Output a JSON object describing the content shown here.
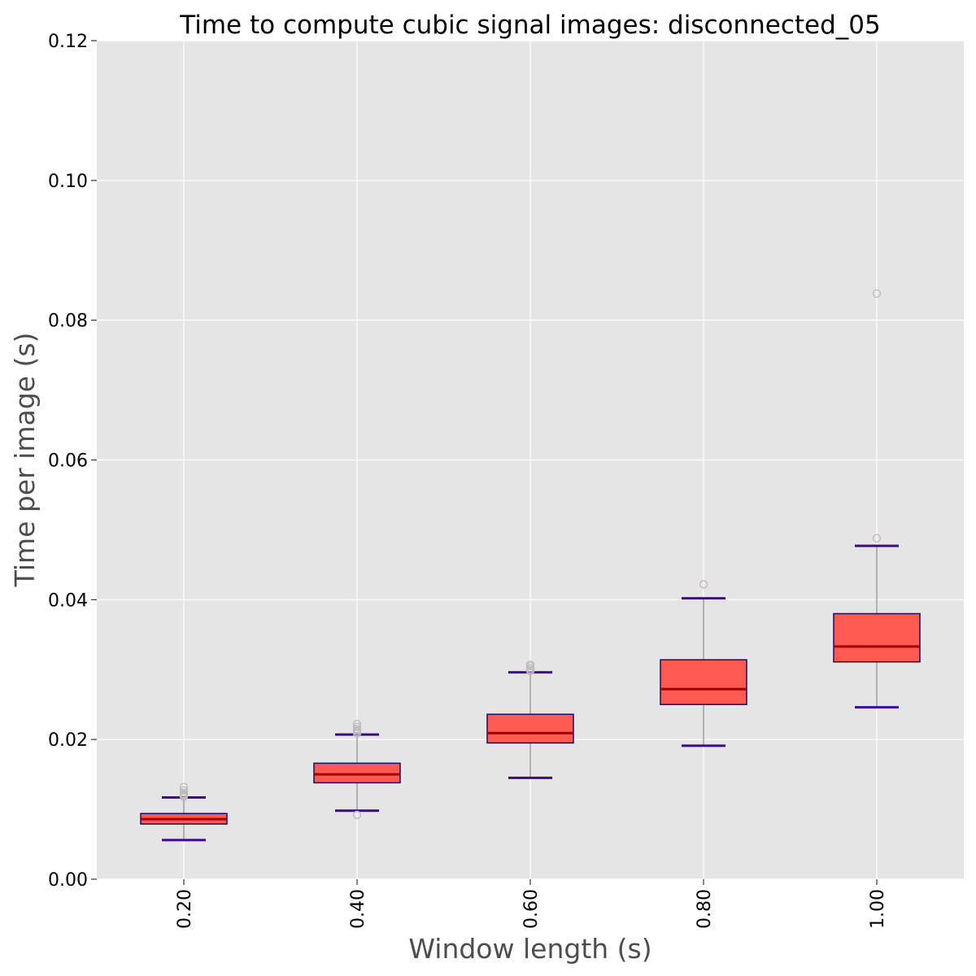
{
  "chart_data": {
    "type": "box",
    "title": "Time to compute cubic signal images: disconnected_05",
    "xlabel": "Window length (s)",
    "ylabel": "Time per image (s)",
    "ylim": [
      0,
      0.12
    ],
    "yticks": [
      "0.00",
      "0.02",
      "0.04",
      "0.06",
      "0.08",
      "0.10",
      "0.12"
    ],
    "grid": true,
    "categories": [
      "0.20",
      "0.40",
      "0.60",
      "0.80",
      "1.00"
    ],
    "boxes": [
      {
        "category": "0.20",
        "whisker_low": 0.0056,
        "q1": 0.0079,
        "median": 0.0086,
        "q3": 0.0094,
        "whisker_high": 0.0117,
        "outliers": [
          0.0118,
          0.0119,
          0.012,
          0.0121,
          0.0122,
          0.0124,
          0.0127,
          0.0132
        ]
      },
      {
        "category": "0.40",
        "whisker_low": 0.0098,
        "q1": 0.0138,
        "median": 0.015,
        "q3": 0.0166,
        "whisker_high": 0.0207,
        "outliers": [
          0.0092,
          0.0209,
          0.0211,
          0.0213,
          0.0215,
          0.0218,
          0.0222
        ]
      },
      {
        "category": "0.60",
        "whisker_low": 0.0145,
        "q1": 0.0195,
        "median": 0.0209,
        "q3": 0.0236,
        "whisker_high": 0.0296,
        "outliers": [
          0.0298,
          0.03,
          0.0302,
          0.0305,
          0.0307
        ]
      },
      {
        "category": "0.80",
        "whisker_low": 0.0191,
        "q1": 0.025,
        "median": 0.0272,
        "q3": 0.0314,
        "whisker_high": 0.0402,
        "outliers": [
          0.0422
        ]
      },
      {
        "category": "1.00",
        "whisker_low": 0.0246,
        "q1": 0.0311,
        "median": 0.0333,
        "q3": 0.038,
        "whisker_high": 0.0477,
        "outliers": [
          0.0488,
          0.0838
        ]
      }
    ],
    "colors": {
      "plot_background": "#e5e5e5",
      "grid": "#ffffff",
      "box_fill": "#ff5a52",
      "box_edge": "#1a0a66",
      "median": "#a00000",
      "whisker": "#999999",
      "cap": "#3d0a8c",
      "outlier": "#bbbbbb"
    }
  }
}
